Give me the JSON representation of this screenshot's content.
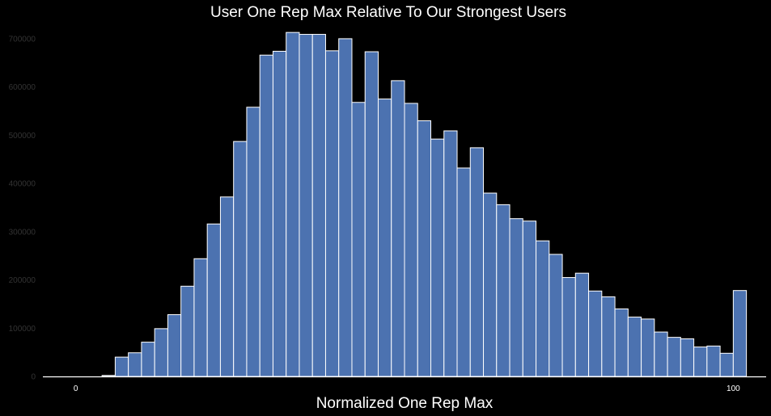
{
  "chart_data": {
    "type": "bar",
    "title": "User One Rep Max Relative To Our Strongest Users",
    "xlabel": "Normalized One Rep Max",
    "ylabel": "",
    "xlim": [
      -5,
      105
    ],
    "ylim": [
      0,
      730000
    ],
    "x_ticks": [
      {
        "value": 0,
        "label": "0"
      },
      {
        "value": 100,
        "label": "100"
      }
    ],
    "y_ticks": [
      {
        "value": 0,
        "label": "0"
      },
      {
        "value": 100000,
        "label": "100000"
      },
      {
        "value": 200000,
        "label": "200000"
      },
      {
        "value": 300000,
        "label": "300000"
      },
      {
        "value": 400000,
        "label": "400000"
      },
      {
        "value": 500000,
        "label": "500000"
      },
      {
        "value": 600000,
        "label": "600000"
      },
      {
        "value": 700000,
        "label": "700000"
      }
    ],
    "bin_start": 0,
    "bin_width": 2,
    "values": [
      0,
      0,
      2000,
      40000,
      49000,
      71000,
      99000,
      128000,
      187000,
      244000,
      316000,
      372000,
      487000,
      558000,
      666000,
      674000,
      713000,
      709000,
      709000,
      675000,
      700000,
      568000,
      673000,
      575000,
      613000,
      566000,
      530000,
      492000,
      509000,
      432000,
      474000,
      380000,
      356000,
      327000,
      322000,
      281000,
      253000,
      205000,
      214000,
      177000,
      165000,
      140000,
      123000,
      119000,
      92000,
      81000,
      78000,
      61000,
      63000,
      48000
    ],
    "trailing_bin": {
      "x": 100,
      "width": 2,
      "value": 178000
    },
    "grid": false,
    "legend": "none",
    "colors": {
      "background": "#000000",
      "bar_fill": "#4c72b0",
      "bar_edge": "#ffffff",
      "axis": "#ffffff",
      "title_text": "#ffffff",
      "y_tick_text": "#333333",
      "x_tick_text": "#ffffff"
    }
  }
}
